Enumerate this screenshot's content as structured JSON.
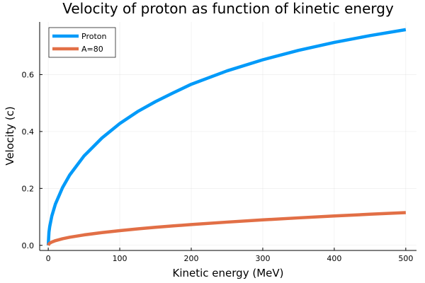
{
  "chart_data": {
    "type": "line",
    "title": "Velocity of proton as function of kinetic energy",
    "xlabel": "Kinetic energy (MeV)",
    "ylabel": "Velocity (c)",
    "xlim": [
      -12,
      515
    ],
    "ylim": [
      -0.018,
      0.785
    ],
    "xticks": [
      0,
      100,
      200,
      300,
      400,
      500
    ],
    "yticks": [
      0.0,
      0.2,
      0.4,
      0.6
    ],
    "xtick_labels": [
      "0",
      "100",
      "200",
      "300",
      "400",
      "500"
    ],
    "ytick_labels": [
      "0.0",
      "0.2",
      "0.4",
      "0.6"
    ],
    "grid": true,
    "legend_position": "top-left",
    "series": [
      {
        "name": "Proton",
        "color": "#009af9",
        "x": [
          0,
          1,
          2,
          5,
          10,
          20,
          30,
          50,
          75,
          100,
          125,
          150,
          175,
          200,
          250,
          300,
          350,
          400,
          450,
          500
        ],
        "y": [
          0.0,
          0.046,
          0.065,
          0.103,
          0.145,
          0.203,
          0.247,
          0.314,
          0.377,
          0.428,
          0.47,
          0.505,
          0.536,
          0.566,
          0.613,
          0.652,
          0.685,
          0.713,
          0.737,
          0.758
        ]
      },
      {
        "name": "A=80",
        "color": "#e26f46",
        "x": [
          0,
          1,
          2,
          5,
          10,
          20,
          30,
          50,
          75,
          100,
          125,
          150,
          175,
          200,
          250,
          300,
          350,
          400,
          450,
          500
        ],
        "y": [
          0.0,
          0.0052,
          0.0073,
          0.0116,
          0.0164,
          0.0232,
          0.0284,
          0.0366,
          0.0448,
          0.0517,
          0.0578,
          0.0633,
          0.0683,
          0.0731,
          0.0816,
          0.0894,
          0.0965,
          0.1031,
          0.1093,
          0.1151
        ]
      }
    ]
  }
}
